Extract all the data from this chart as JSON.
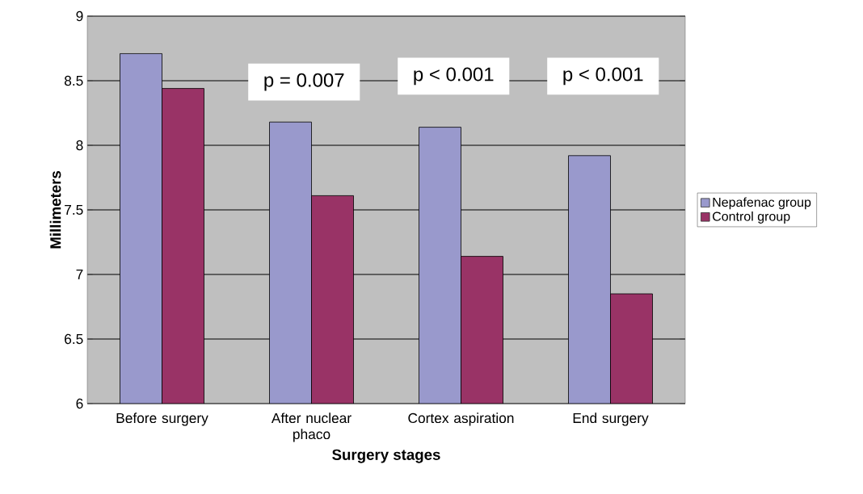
{
  "chart_data": {
    "type": "bar",
    "xlabel": "Surgery stages",
    "ylabel": "Millimeters",
    "categories": [
      "Before surgery",
      "After nuclear phaco",
      "Cortex aspiration",
      "End surgery"
    ],
    "series": [
      {
        "name": "Nepafenac group",
        "color": "#9999cc",
        "values": [
          8.71,
          8.18,
          8.14,
          7.92
        ]
      },
      {
        "name": "Control group",
        "color": "#993366",
        "values": [
          8.44,
          7.61,
          7.14,
          6.85
        ]
      }
    ],
    "ylim": [
      6,
      9
    ],
    "yticks": [
      6,
      6.5,
      7,
      7.5,
      8,
      8.5,
      9
    ],
    "grid": "y",
    "legend": "right",
    "annotations": [
      "p = 0.007",
      "p < 0.001",
      "p < 0.001"
    ]
  }
}
